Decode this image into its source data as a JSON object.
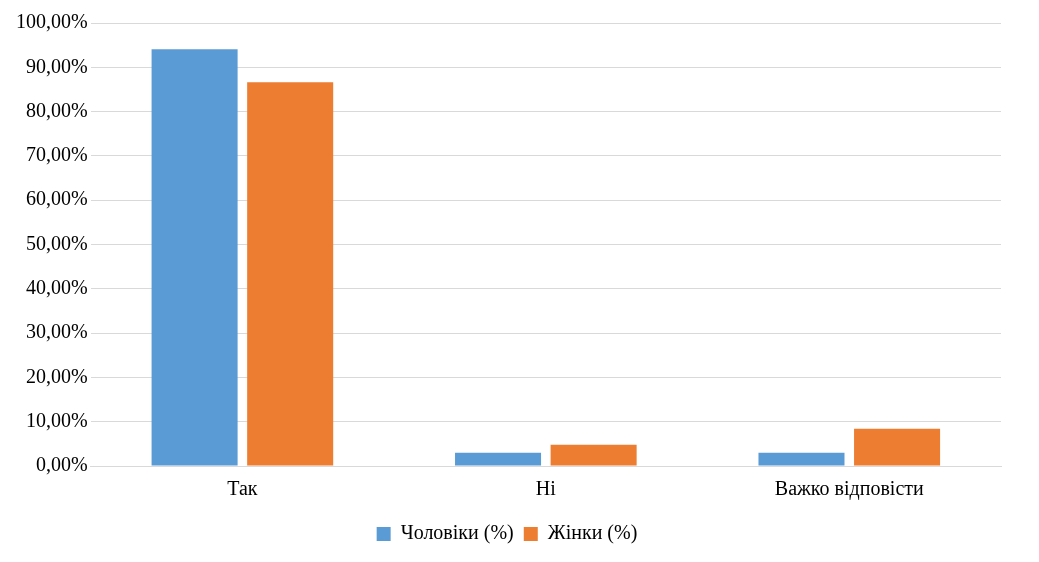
{
  "chart_data": {
    "type": "bar",
    "categories": [
      "Так",
      "Ні",
      "Важко відповісти"
    ],
    "series": [
      {
        "name": "Чоловіки (%)",
        "color": "#5b9bd5",
        "values": [
          94.1,
          3.0,
          3.0
        ]
      },
      {
        "name": "Жінки (%)",
        "color": "#ed7d31",
        "values": [
          86.6,
          4.8,
          8.4
        ]
      }
    ],
    "ylim": [
      0,
      100
    ],
    "yticks": [
      {
        "value": 0,
        "label": "0,00%"
      },
      {
        "value": 10,
        "label": "10,00%"
      },
      {
        "value": 20,
        "label": "20,00%"
      },
      {
        "value": 30,
        "label": "30,00%"
      },
      {
        "value": 40,
        "label": "40,00%"
      },
      {
        "value": 50,
        "label": "50,00%"
      },
      {
        "value": 60,
        "label": "60,00%"
      },
      {
        "value": 70,
        "label": "70,00%"
      },
      {
        "value": 80,
        "label": "80,00%"
      },
      {
        "value": 90,
        "label": "90,00%"
      },
      {
        "value": 100,
        "label": "100,00%"
      }
    ],
    "grid": "y",
    "legend": "bottom"
  }
}
